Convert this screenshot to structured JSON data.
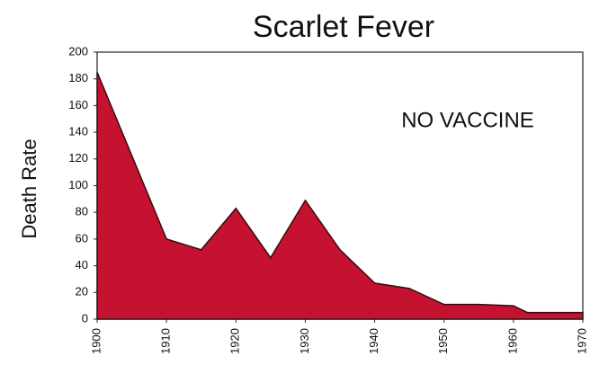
{
  "chart_data": {
    "type": "area",
    "title": "Scarlet Fever",
    "ylabel": "Death Rate",
    "annotation": "NO VACCINE",
    "x": [
      1900,
      1910,
      1915,
      1920,
      1925,
      1930,
      1935,
      1940,
      1945,
      1950,
      1955,
      1960,
      1962,
      1970
    ],
    "values": [
      185,
      60,
      52,
      83,
      46,
      89,
      52,
      27,
      23,
      11,
      11,
      10,
      5,
      5
    ],
    "color": "#c41230",
    "xlim": [
      1900,
      1970
    ],
    "xticks": [
      1900,
      1910,
      1920,
      1930,
      1940,
      1950,
      1960,
      1970
    ],
    "ylim": [
      0,
      200
    ],
    "yticks": [
      0,
      20,
      40,
      60,
      80,
      100,
      120,
      140,
      160,
      180,
      200
    ]
  }
}
